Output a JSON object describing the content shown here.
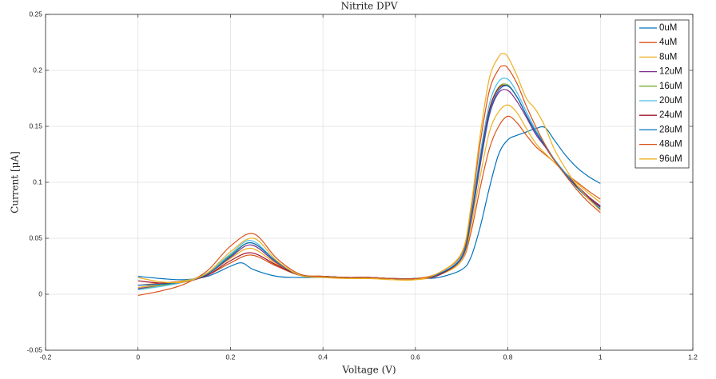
{
  "chart_data": {
    "type": "line",
    "title": "Nitrite DPV",
    "xlabel": "Voltage (V)",
    "ylabel": "Current [μA]",
    "xlim": [
      -0.2,
      1.2
    ],
    "ylim": [
      -0.05,
      0.25
    ],
    "xticks": [
      -0.2,
      0,
      0.2,
      0.4,
      0.6,
      0.8,
      1,
      1.2
    ],
    "xtick_labels": [
      "-0.2",
      "0",
      "0.2",
      "0.4",
      "0.6",
      "0.8",
      "1",
      "1.2"
    ],
    "yticks": [
      -0.05,
      0,
      0.05,
      0.1,
      0.15,
      0.2,
      0.25
    ],
    "ytick_labels": [
      "-0.05",
      "0",
      "0.05",
      "0.1",
      "0.15",
      "0.2",
      "0.25"
    ],
    "grid": true,
    "legend_position": "top-right",
    "series": [
      {
        "name": "0uM",
        "color": "#0072BD",
        "x": [
          0,
          0.05,
          0.1,
          0.15,
          0.2,
          0.225,
          0.25,
          0.3,
          0.35,
          0.4,
          0.45,
          0.5,
          0.55,
          0.6,
          0.65,
          0.7,
          0.72,
          0.74,
          0.76,
          0.78,
          0.8,
          0.82,
          0.84,
          0.86,
          0.88,
          0.9,
          0.925,
          0.95,
          0.975,
          1.0
        ],
        "y": [
          0.016,
          0.014,
          0.013,
          0.016,
          0.025,
          0.028,
          0.022,
          0.016,
          0.015,
          0.015,
          0.015,
          0.015,
          0.014,
          0.014,
          0.015,
          0.022,
          0.033,
          0.06,
          0.095,
          0.125,
          0.138,
          0.142,
          0.145,
          0.148,
          0.149,
          0.138,
          0.124,
          0.113,
          0.105,
          0.099
        ]
      },
      {
        "name": "4uM",
        "color": "#D95319",
        "x": [
          0,
          0.05,
          0.1,
          0.15,
          0.2,
          0.245,
          0.3,
          0.35,
          0.4,
          0.45,
          0.5,
          0.55,
          0.6,
          0.65,
          0.7,
          0.72,
          0.74,
          0.76,
          0.78,
          0.8,
          0.82,
          0.84,
          0.86,
          0.88,
          0.9,
          0.925,
          0.95,
          0.975,
          1.0
        ],
        "y": [
          0.008,
          0.01,
          0.012,
          0.017,
          0.028,
          0.035,
          0.025,
          0.017,
          0.016,
          0.015,
          0.015,
          0.014,
          0.014,
          0.017,
          0.03,
          0.055,
          0.095,
          0.13,
          0.15,
          0.159,
          0.153,
          0.142,
          0.132,
          0.125,
          0.118,
          0.108,
          0.1,
          0.092,
          0.085
        ]
      },
      {
        "name": "8uM",
        "color": "#EDB120",
        "x": [
          0,
          0.05,
          0.1,
          0.15,
          0.2,
          0.245,
          0.3,
          0.35,
          0.4,
          0.45,
          0.5,
          0.55,
          0.6,
          0.65,
          0.7,
          0.72,
          0.74,
          0.76,
          0.78,
          0.8,
          0.82,
          0.84,
          0.86,
          0.88,
          0.9,
          0.925,
          0.95,
          0.975,
          1.0
        ],
        "y": [
          0.006,
          0.009,
          0.012,
          0.018,
          0.032,
          0.041,
          0.027,
          0.017,
          0.016,
          0.015,
          0.014,
          0.014,
          0.013,
          0.017,
          0.03,
          0.06,
          0.105,
          0.145,
          0.163,
          0.169,
          0.162,
          0.148,
          0.135,
          0.126,
          0.118,
          0.108,
          0.099,
          0.09,
          0.082
        ]
      },
      {
        "name": "12uM",
        "color": "#7E2F8E",
        "x": [
          0,
          0.05,
          0.1,
          0.15,
          0.2,
          0.245,
          0.3,
          0.35,
          0.4,
          0.45,
          0.5,
          0.55,
          0.6,
          0.65,
          0.7,
          0.72,
          0.74,
          0.76,
          0.78,
          0.8,
          0.82,
          0.84,
          0.86,
          0.88,
          0.9,
          0.925,
          0.95,
          0.975,
          1.0
        ],
        "y": [
          0.005,
          0.008,
          0.011,
          0.018,
          0.033,
          0.044,
          0.028,
          0.017,
          0.016,
          0.015,
          0.015,
          0.014,
          0.014,
          0.018,
          0.032,
          0.065,
          0.115,
          0.16,
          0.18,
          0.182,
          0.172,
          0.158,
          0.143,
          0.132,
          0.12,
          0.108,
          0.097,
          0.087,
          0.079
        ]
      },
      {
        "name": "16uM",
        "color": "#77AC30",
        "x": [
          0,
          0.05,
          0.1,
          0.15,
          0.2,
          0.245,
          0.3,
          0.35,
          0.4,
          0.45,
          0.5,
          0.55,
          0.6,
          0.65,
          0.7,
          0.72,
          0.74,
          0.76,
          0.78,
          0.8,
          0.82,
          0.84,
          0.86,
          0.88,
          0.9,
          0.925,
          0.95,
          0.975,
          1.0
        ],
        "y": [
          0.004,
          0.008,
          0.011,
          0.019,
          0.035,
          0.046,
          0.029,
          0.017,
          0.016,
          0.015,
          0.015,
          0.014,
          0.014,
          0.018,
          0.033,
          0.068,
          0.12,
          0.165,
          0.185,
          0.187,
          0.176,
          0.16,
          0.145,
          0.133,
          0.12,
          0.107,
          0.096,
          0.086,
          0.078
        ]
      },
      {
        "name": "20uM",
        "color": "#4DBEEE",
        "x": [
          0,
          0.05,
          0.1,
          0.15,
          0.2,
          0.245,
          0.3,
          0.35,
          0.4,
          0.45,
          0.5,
          0.55,
          0.6,
          0.65,
          0.7,
          0.72,
          0.74,
          0.76,
          0.78,
          0.8,
          0.82,
          0.84,
          0.86,
          0.88,
          0.9,
          0.925,
          0.95,
          0.975,
          1.0
        ],
        "y": [
          0.004,
          0.007,
          0.011,
          0.019,
          0.036,
          0.048,
          0.029,
          0.017,
          0.016,
          0.015,
          0.015,
          0.014,
          0.014,
          0.018,
          0.034,
          0.07,
          0.125,
          0.17,
          0.19,
          0.192,
          0.18,
          0.163,
          0.147,
          0.134,
          0.121,
          0.108,
          0.096,
          0.086,
          0.077
        ]
      },
      {
        "name": "24uM",
        "color": "#A2142F",
        "x": [
          0,
          0.05,
          0.1,
          0.15,
          0.2,
          0.245,
          0.3,
          0.35,
          0.4,
          0.45,
          0.5,
          0.55,
          0.6,
          0.65,
          0.7,
          0.72,
          0.74,
          0.76,
          0.78,
          0.8,
          0.82,
          0.84,
          0.86,
          0.88,
          0.9,
          0.925,
          0.95,
          0.975,
          1.0
        ],
        "y": [
          0.012,
          0.01,
          0.011,
          0.017,
          0.03,
          0.037,
          0.026,
          0.017,
          0.016,
          0.015,
          0.015,
          0.014,
          0.014,
          0.017,
          0.033,
          0.068,
          0.12,
          0.165,
          0.184,
          0.186,
          0.176,
          0.16,
          0.145,
          0.133,
          0.12,
          0.107,
          0.096,
          0.086,
          0.078
        ]
      },
      {
        "name": "28uM",
        "color": "#0072BD",
        "x": [
          0,
          0.05,
          0.1,
          0.15,
          0.2,
          0.245,
          0.3,
          0.35,
          0.4,
          0.45,
          0.5,
          0.55,
          0.6,
          0.65,
          0.7,
          0.72,
          0.74,
          0.76,
          0.78,
          0.8,
          0.82,
          0.84,
          0.86,
          0.88,
          0.9,
          0.925,
          0.95,
          0.975,
          1.0
        ],
        "y": [
          0.008,
          0.009,
          0.011,
          0.018,
          0.034,
          0.046,
          0.029,
          0.017,
          0.016,
          0.015,
          0.015,
          0.014,
          0.014,
          0.018,
          0.033,
          0.067,
          0.118,
          0.162,
          0.182,
          0.186,
          0.176,
          0.16,
          0.145,
          0.133,
          0.12,
          0.107,
          0.095,
          0.085,
          0.076
        ]
      },
      {
        "name": "48uM",
        "color": "#D95319",
        "x": [
          0,
          0.05,
          0.1,
          0.15,
          0.2,
          0.25,
          0.3,
          0.35,
          0.4,
          0.45,
          0.5,
          0.55,
          0.6,
          0.65,
          0.7,
          0.72,
          0.74,
          0.76,
          0.78,
          0.79,
          0.8,
          0.82,
          0.84,
          0.86,
          0.88,
          0.9,
          0.925,
          0.95,
          0.975,
          1.0
        ],
        "y": [
          -0.001,
          0.003,
          0.009,
          0.021,
          0.043,
          0.054,
          0.032,
          0.018,
          0.016,
          0.015,
          0.015,
          0.014,
          0.014,
          0.019,
          0.036,
          0.075,
          0.135,
          0.182,
          0.201,
          0.204,
          0.202,
          0.188,
          0.168,
          0.15,
          0.134,
          0.12,
          0.106,
          0.093,
          0.082,
          0.073
        ]
      },
      {
        "name": "96uM",
        "color": "#EDB120",
        "x": [
          0,
          0.05,
          0.1,
          0.15,
          0.2,
          0.25,
          0.3,
          0.35,
          0.4,
          0.45,
          0.5,
          0.55,
          0.6,
          0.65,
          0.7,
          0.72,
          0.74,
          0.76,
          0.78,
          0.79,
          0.8,
          0.82,
          0.84,
          0.86,
          0.88,
          0.9,
          0.925,
          0.95,
          0.975,
          1.0
        ],
        "y": [
          0.015,
          0.011,
          0.011,
          0.019,
          0.038,
          0.05,
          0.03,
          0.017,
          0.015,
          0.014,
          0.014,
          0.013,
          0.013,
          0.019,
          0.037,
          0.078,
          0.142,
          0.193,
          0.212,
          0.215,
          0.212,
          0.195,
          0.175,
          0.165,
          0.15,
          0.13,
          0.112,
          0.097,
          0.085,
          0.075
        ]
      }
    ]
  }
}
